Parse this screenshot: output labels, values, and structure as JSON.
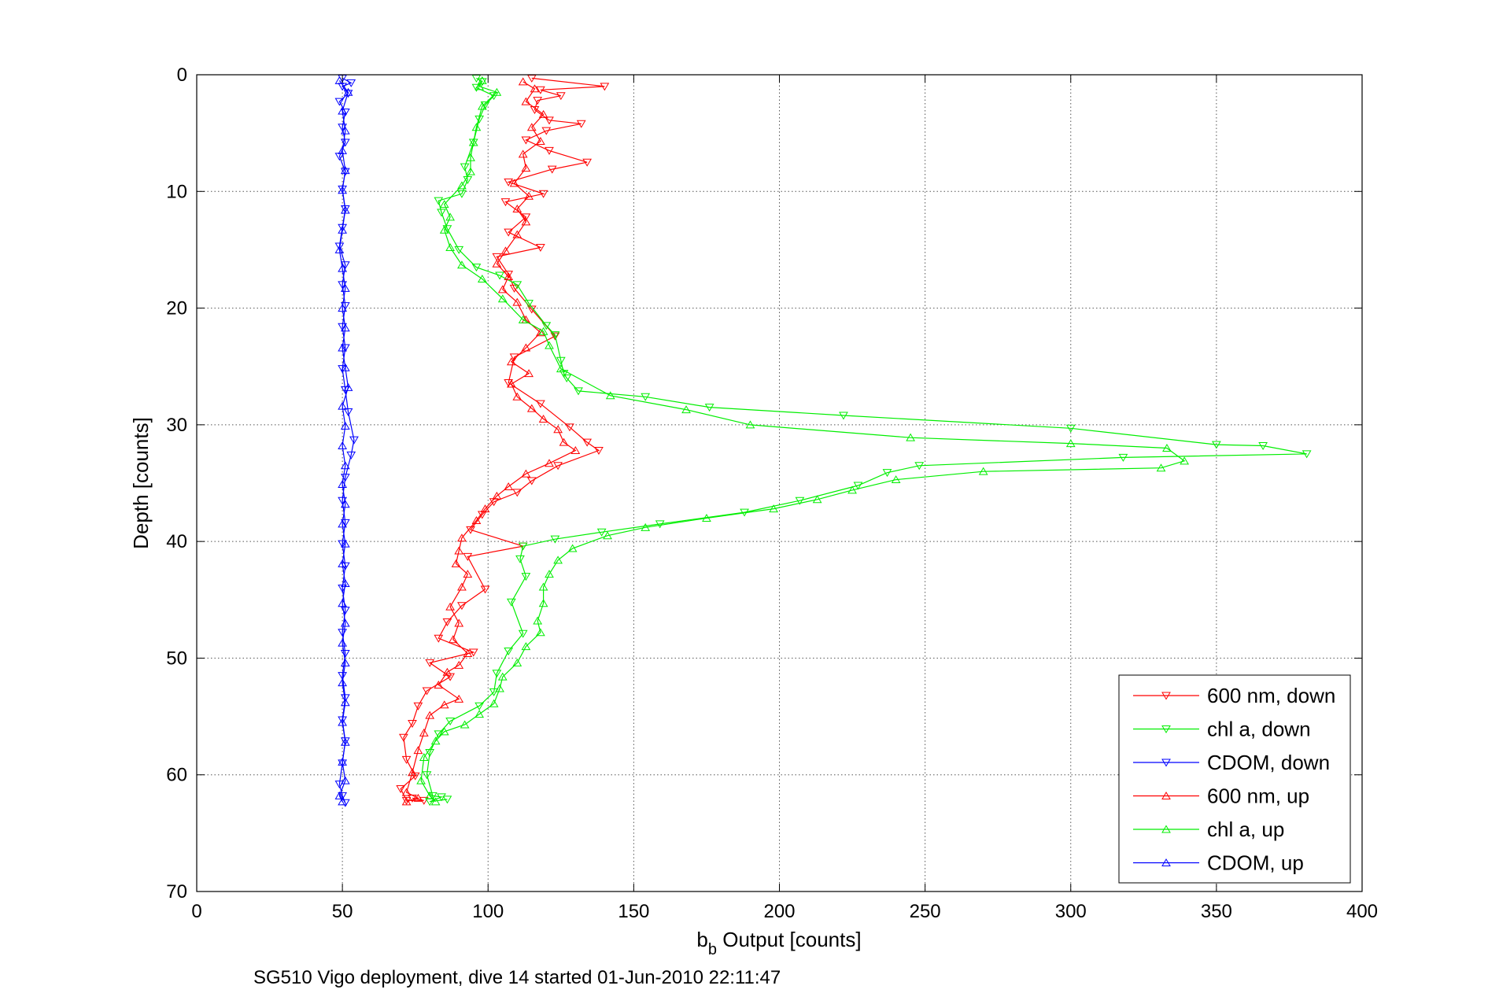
{
  "caption": "SG510 Vigo deployment, dive 14 started 01-Jun-2010 22:11:47",
  "chart_data": {
    "type": "line",
    "xlabel_main": "b",
    "xlabel_sub": "b",
    "xlabel_rest": " Output [counts]",
    "ylabel": "Depth [counts]",
    "xlim": [
      0,
      400
    ],
    "ylim": [
      0,
      70
    ],
    "y_reversed": true,
    "xticks": [
      "0",
      "50",
      "100",
      "150",
      "200",
      "250",
      "300",
      "350",
      "400"
    ],
    "yticks": [
      "0",
      "10",
      "20",
      "30",
      "40",
      "50",
      "60",
      "70"
    ],
    "grid": true,
    "legend_position": "bottom-right",
    "series": [
      {
        "name": "600 nm, down",
        "color": "#ff0000",
        "marker": "triangle-down",
        "points": [
          [
            115,
            0.3
          ],
          [
            140,
            1.0
          ],
          [
            118,
            1.3
          ],
          [
            125,
            1.8
          ],
          [
            117,
            2.2
          ],
          [
            116,
            3.0
          ],
          [
            121,
            3.9
          ],
          [
            132,
            4.2
          ],
          [
            120,
            4.8
          ],
          [
            113,
            5.6
          ],
          [
            121,
            6.5
          ],
          [
            134,
            7.5
          ],
          [
            122,
            8.1
          ],
          [
            107,
            9.2
          ],
          [
            119,
            10.2
          ],
          [
            106,
            10.9
          ],
          [
            113,
            12.2
          ],
          [
            107,
            13.5
          ],
          [
            118,
            14.8
          ],
          [
            103,
            15.6
          ],
          [
            107,
            17.1
          ],
          [
            109,
            18.3
          ],
          [
            115,
            20.1
          ],
          [
            123,
            22.4
          ],
          [
            109,
            24.2
          ],
          [
            107,
            26.4
          ],
          [
            118,
            28.2
          ],
          [
            128,
            30.2
          ],
          [
            134,
            31.5
          ],
          [
            138,
            32.2
          ],
          [
            124,
            33.5
          ],
          [
            115,
            34.8
          ],
          [
            110,
            35.8
          ],
          [
            102,
            36.6
          ],
          [
            98,
            37.7
          ],
          [
            94,
            39.0
          ],
          [
            112,
            40.4
          ],
          [
            93,
            41.3
          ],
          [
            99,
            44.1
          ],
          [
            91,
            45.5
          ],
          [
            86,
            46.9
          ],
          [
            83,
            48.3
          ],
          [
            95,
            49.5
          ],
          [
            80,
            50.4
          ],
          [
            87,
            51.6
          ],
          [
            79,
            52.8
          ],
          [
            76,
            54.1
          ],
          [
            74,
            55.6
          ],
          [
            71,
            56.8
          ],
          [
            72,
            58.7
          ],
          [
            75,
            60.1
          ],
          [
            70,
            61.2
          ],
          [
            72,
            62.2
          ],
          [
            78,
            62.2
          ],
          [
            74,
            62.0
          ]
        ]
      },
      {
        "name": "chl a, down",
        "color": "#00ee00",
        "marker": "triangle-down",
        "points": [
          [
            96,
            0.3
          ],
          [
            98,
            0.6
          ],
          [
            96,
            1.1
          ],
          [
            102,
            1.8
          ],
          [
            99,
            2.6
          ],
          [
            97,
            3.8
          ],
          [
            95,
            5.8
          ],
          [
            92,
            7.9
          ],
          [
            93,
            9.0
          ],
          [
            91,
            10.2
          ],
          [
            83,
            10.8
          ],
          [
            84,
            11.8
          ],
          [
            86,
            13.2
          ],
          [
            90,
            15.0
          ],
          [
            96,
            16.5
          ],
          [
            104,
            17.2
          ],
          [
            110,
            18.0
          ],
          [
            114,
            19.6
          ],
          [
            120,
            21.5
          ],
          [
            123,
            22.3
          ],
          [
            125,
            24.5
          ],
          [
            126,
            25.6
          ],
          [
            127,
            26.0
          ],
          [
            131,
            27.1
          ],
          [
            154,
            27.6
          ],
          [
            176,
            28.5
          ],
          [
            222,
            29.2
          ],
          [
            300,
            30.3
          ],
          [
            350,
            31.7
          ],
          [
            366,
            31.8
          ],
          [
            381,
            32.5
          ],
          [
            318,
            32.8
          ],
          [
            248,
            33.5
          ],
          [
            237,
            34.1
          ],
          [
            227,
            35.2
          ],
          [
            207,
            36.5
          ],
          [
            188,
            37.5
          ],
          [
            159,
            38.5
          ],
          [
            139,
            39.2
          ],
          [
            123,
            39.8
          ],
          [
            112,
            40.4
          ],
          [
            111,
            41.5
          ],
          [
            113,
            43.0
          ],
          [
            108,
            45.2
          ],
          [
            112,
            47.9
          ],
          [
            107,
            49.4
          ],
          [
            103,
            51.3
          ],
          [
            102,
            52.9
          ],
          [
            97,
            54.1
          ],
          [
            87,
            55.4
          ],
          [
            83,
            56.5
          ],
          [
            80,
            58.1
          ],
          [
            79,
            60.0
          ],
          [
            81,
            61.8
          ],
          [
            84,
            61.9
          ],
          [
            80,
            62.3
          ],
          [
            86,
            62.1
          ]
        ]
      },
      {
        "name": "CDOM, down",
        "color": "#0000ff",
        "marker": "triangle-down",
        "points": [
          [
            50,
            0.3
          ],
          [
            53,
            0.7
          ],
          [
            50,
            1.0
          ],
          [
            52,
            1.6
          ],
          [
            49,
            2.3
          ],
          [
            51,
            3.2
          ],
          [
            50,
            4.5
          ],
          [
            51,
            5.8
          ],
          [
            49,
            7.0
          ],
          [
            51,
            8.3
          ],
          [
            50,
            9.8
          ],
          [
            51,
            11.5
          ],
          [
            50,
            13.1
          ],
          [
            49,
            14.7
          ],
          [
            51,
            16.3
          ],
          [
            50,
            18.0
          ],
          [
            51,
            19.8
          ],
          [
            50,
            21.6
          ],
          [
            51,
            23.4
          ],
          [
            50,
            25.2
          ],
          [
            51,
            27.0
          ],
          [
            52,
            28.9
          ],
          [
            54,
            31.3
          ],
          [
            53,
            32.6
          ],
          [
            51,
            34.5
          ],
          [
            50,
            36.5
          ],
          [
            51,
            38.4
          ],
          [
            50,
            40.2
          ],
          [
            51,
            42.1
          ],
          [
            50,
            44.0
          ],
          [
            51,
            45.9
          ],
          [
            50,
            47.8
          ],
          [
            51,
            49.6
          ],
          [
            50,
            51.5
          ],
          [
            51,
            53.4
          ],
          [
            50,
            55.3
          ],
          [
            51,
            57.1
          ],
          [
            50,
            59.0
          ],
          [
            49,
            60.8
          ],
          [
            50,
            61.8
          ],
          [
            51,
            62.4
          ]
        ]
      },
      {
        "name": "600 nm, up",
        "color": "#ff0000",
        "marker": "triangle-up",
        "points": [
          [
            72,
            62.3
          ],
          [
            76,
            62.0
          ],
          [
            72,
            61.5
          ],
          [
            74,
            59.8
          ],
          [
            76,
            57.9
          ],
          [
            78,
            56.4
          ],
          [
            80,
            54.9
          ],
          [
            85,
            54.0
          ],
          [
            90,
            53.5
          ],
          [
            83,
            52.3
          ],
          [
            86,
            51.2
          ],
          [
            90,
            50.6
          ],
          [
            93,
            49.6
          ],
          [
            88,
            48.4
          ],
          [
            90,
            47.0
          ],
          [
            87,
            45.6
          ],
          [
            91,
            43.9
          ],
          [
            93,
            42.8
          ],
          [
            89,
            41.9
          ],
          [
            90,
            40.8
          ],
          [
            91,
            39.7
          ],
          [
            96,
            38.2
          ],
          [
            99,
            37.2
          ],
          [
            103,
            36.1
          ],
          [
            107,
            35.3
          ],
          [
            113,
            34.2
          ],
          [
            121,
            33.3
          ],
          [
            130,
            32.2
          ],
          [
            126,
            31.5
          ],
          [
            124,
            30.4
          ],
          [
            119,
            29.5
          ],
          [
            115,
            28.6
          ],
          [
            110,
            27.6
          ],
          [
            108,
            26.5
          ],
          [
            114,
            25.6
          ],
          [
            108,
            24.6
          ],
          [
            113,
            23.4
          ],
          [
            118,
            22.1
          ],
          [
            113,
            21.0
          ],
          [
            110,
            19.5
          ],
          [
            105,
            18.4
          ],
          [
            107,
            17.3
          ],
          [
            103,
            16.2
          ],
          [
            106,
            15.1
          ],
          [
            110,
            13.7
          ],
          [
            113,
            12.6
          ],
          [
            110,
            11.5
          ],
          [
            114,
            10.4
          ],
          [
            109,
            9.3
          ],
          [
            113,
            8.0
          ],
          [
            112,
            6.8
          ],
          [
            118,
            5.7
          ],
          [
            115,
            4.5
          ],
          [
            119,
            3.4
          ],
          [
            113,
            2.3
          ],
          [
            116,
            1.2
          ],
          [
            112,
            0.6
          ]
        ]
      },
      {
        "name": "chl a, up",
        "color": "#00ee00",
        "marker": "triangle-up",
        "points": [
          [
            82,
            62.3
          ],
          [
            80,
            61.8
          ],
          [
            77,
            60.5
          ],
          [
            78,
            58.5
          ],
          [
            82,
            57.1
          ],
          [
            85,
            56.3
          ],
          [
            92,
            55.7
          ],
          [
            97,
            54.8
          ],
          [
            102,
            53.9
          ],
          [
            104,
            52.6
          ],
          [
            105,
            51.6
          ],
          [
            110,
            50.4
          ],
          [
            113,
            49.0
          ],
          [
            118,
            47.8
          ],
          [
            117,
            46.8
          ],
          [
            119,
            45.3
          ],
          [
            119,
            43.9
          ],
          [
            121,
            42.8
          ],
          [
            124,
            41.6
          ],
          [
            129,
            40.6
          ],
          [
            141,
            39.5
          ],
          [
            154,
            38.8
          ],
          [
            175,
            38.0
          ],
          [
            198,
            37.2
          ],
          [
            213,
            36.4
          ],
          [
            225,
            35.6
          ],
          [
            240,
            34.7
          ],
          [
            270,
            34.0
          ],
          [
            331,
            33.7
          ],
          [
            339,
            33.1
          ],
          [
            333,
            32.0
          ],
          [
            300,
            31.6
          ],
          [
            245,
            31.1
          ],
          [
            190,
            30.0
          ],
          [
            168,
            28.7
          ],
          [
            142,
            27.5
          ],
          [
            125,
            25.2
          ],
          [
            121,
            23.2
          ],
          [
            119,
            22.0
          ],
          [
            112,
            21.0
          ],
          [
            105,
            19.2
          ],
          [
            98,
            17.5
          ],
          [
            91,
            16.3
          ],
          [
            87,
            14.8
          ],
          [
            85,
            13.3
          ],
          [
            87,
            12.2
          ],
          [
            85,
            11.1
          ],
          [
            91,
            9.5
          ],
          [
            94,
            8.3
          ],
          [
            94,
            7.1
          ],
          [
            95,
            5.8
          ],
          [
            96,
            4.5
          ],
          [
            98,
            2.7
          ],
          [
            103,
            1.5
          ],
          [
            97,
            1.0
          ],
          [
            98,
            0.5
          ]
        ]
      },
      {
        "name": "CDOM, up",
        "color": "#0000ff",
        "marker": "triangle-up",
        "points": [
          [
            50,
            62.3
          ],
          [
            49,
            61.8
          ],
          [
            51,
            60.5
          ],
          [
            50,
            58.9
          ],
          [
            51,
            57.2
          ],
          [
            50,
            55.5
          ],
          [
            51,
            53.8
          ],
          [
            50,
            52.1
          ],
          [
            51,
            50.4
          ],
          [
            50,
            48.7
          ],
          [
            51,
            47.0
          ],
          [
            50,
            45.3
          ],
          [
            51,
            43.6
          ],
          [
            50,
            41.9
          ],
          [
            51,
            40.2
          ],
          [
            50,
            38.5
          ],
          [
            51,
            36.8
          ],
          [
            50,
            35.1
          ],
          [
            51,
            33.5
          ],
          [
            50,
            31.8
          ],
          [
            51,
            30.1
          ],
          [
            50,
            28.4
          ],
          [
            52,
            26.8
          ],
          [
            51,
            25.1
          ],
          [
            50,
            23.4
          ],
          [
            51,
            21.7
          ],
          [
            50,
            20.0
          ],
          [
            51,
            18.3
          ],
          [
            50,
            16.6
          ],
          [
            49,
            15.0
          ],
          [
            50,
            13.3
          ],
          [
            51,
            11.6
          ],
          [
            50,
            9.9
          ],
          [
            51,
            8.2
          ],
          [
            50,
            6.5
          ],
          [
            51,
            4.8
          ],
          [
            50,
            3.1
          ],
          [
            52,
            1.5
          ],
          [
            49,
            0.5
          ]
        ]
      }
    ]
  }
}
